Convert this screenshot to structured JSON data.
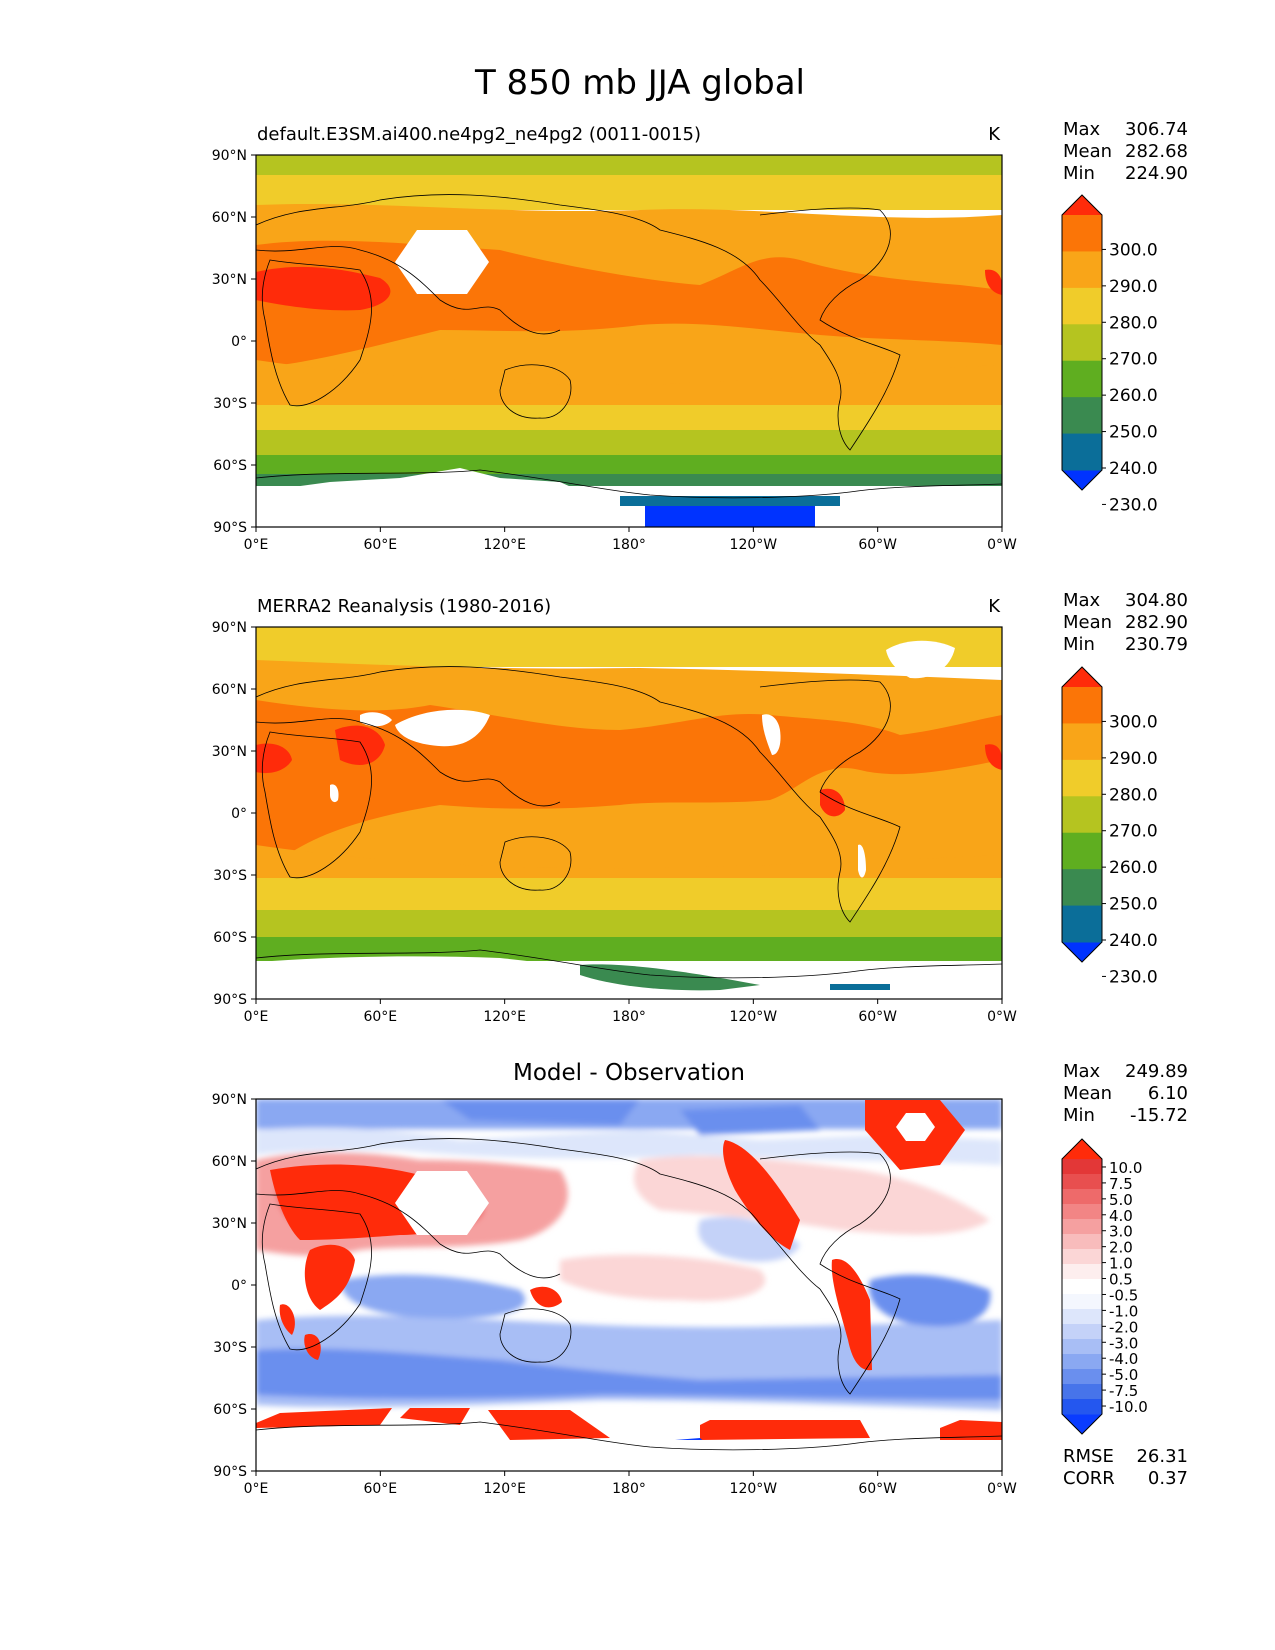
{
  "figure_title": "T 850 mb JJA global",
  "colors": {
    "levels_abs": [
      "#0033ff",
      "#0b6e99",
      "#3a8a50",
      "#5fae20",
      "#b5c420",
      "#f0cc2a",
      "#f9a518",
      "#fb7507",
      "#ff2b0a"
    ],
    "levels_diff": [
      "#0a3cff",
      "#2457ef",
      "#4774ea",
      "#6a8fee",
      "#8aa8f2",
      "#a8bef5",
      "#c4d2f8",
      "#dde6fb",
      "#f4f7fe",
      "#ffffff",
      "#fdeeee",
      "#fbd6d6",
      "#f8bcbc",
      "#f5a0a0",
      "#f28585",
      "#ee6a6a",
      "#e84f4f",
      "#e33737",
      "#ff2b0a"
    ],
    "missing": "#ffffff",
    "coast": "#000000"
  },
  "chart_data": [
    {
      "type": "heatmap",
      "panel": "model",
      "title_left": "default.E3SM.ai400.ne4pg2_ne4pg2 (0011-0015)",
      "title_right": "K",
      "stats": {
        "max_label": "Max",
        "max": "306.74",
        "mean_label": "Mean",
        "mean": "282.68",
        "min_label": "Min",
        "min": "224.90"
      },
      "x_ticks": [
        "0°E",
        "60°E",
        "120°E",
        "180°",
        "120°W",
        "60°W",
        "0°W"
      ],
      "y_ticks": [
        "90°N",
        "60°N",
        "30°N",
        "0°",
        "30°S",
        "60°S",
        "90°S"
      ],
      "xlim": [
        0,
        360
      ],
      "ylim": [
        -90,
        90
      ],
      "colorbar": {
        "labels": [
          "300.0",
          "290.0",
          "280.0",
          "270.0",
          "260.0",
          "250.0",
          "240.0",
          "230.0"
        ],
        "levels": [
          230,
          240,
          250,
          260,
          270,
          280,
          290,
          300
        ]
      },
      "features": [
        {
          "region": "Sahara/Arabia hot core",
          "lon": [
            0,
            55
          ],
          "lat": [
            15,
            40
          ],
          "value": 302
        },
        {
          "region": "Tibetan plateau (missing)",
          "lon": [
            68,
            112
          ],
          "lat": [
            25,
            50
          ],
          "value": null
        },
        {
          "region": "Antarctica (missing)",
          "lon": [
            0,
            360
          ],
          "lat": [
            -90,
            -72
          ],
          "value": null
        },
        {
          "region": "Ross sea cold sector",
          "lon": [
            187,
            270
          ],
          "lat": [
            -90,
            -82
          ],
          "value": 228
        }
      ]
    },
    {
      "type": "heatmap",
      "panel": "observation",
      "title_left": "MERRA2 Reanalysis (1980-2016)",
      "title_right": "K",
      "stats": {
        "max_label": "Max",
        "max": "304.80",
        "mean_label": "Mean",
        "mean": "282.90",
        "min_label": "Min",
        "min": "230.79"
      },
      "x_ticks": [
        "0°E",
        "60°E",
        "120°E",
        "180°",
        "120°W",
        "60°W",
        "0°W"
      ],
      "y_ticks": [
        "90°N",
        "60°N",
        "30°N",
        "0°",
        "30°S",
        "60°S",
        "90°S"
      ],
      "xlim": [
        0,
        360
      ],
      "ylim": [
        -90,
        90
      ],
      "colorbar": {
        "labels": [
          "300.0",
          "290.0",
          "280.0",
          "270.0",
          "260.0",
          "250.0",
          "240.0",
          "230.0"
        ],
        "levels": [
          230,
          240,
          250,
          260,
          270,
          280,
          290,
          300
        ]
      },
      "features": [
        {
          "region": "Greenland (missing)",
          "lon": [
            305,
            330
          ],
          "lat": [
            62,
            82
          ],
          "value": null
        },
        {
          "region": "Tibetan plateau (missing)",
          "lon": [
            70,
            105
          ],
          "lat": [
            28,
            40
          ],
          "value": null
        },
        {
          "region": "Rockies (missing)",
          "lon": [
            242,
            250
          ],
          "lat": [
            28,
            52
          ],
          "value": null
        },
        {
          "region": "Andes (missing)",
          "lon": [
            290,
            296
          ],
          "lat": [
            -35,
            -5
          ],
          "value": null
        },
        {
          "region": "Antarctica (missing)",
          "lon": [
            0,
            360
          ],
          "lat": [
            -90,
            -73
          ],
          "value": null
        }
      ]
    },
    {
      "type": "heatmap",
      "panel": "difference",
      "title_center": "Model - Observation",
      "stats": {
        "max_label": "Max",
        "max": "249.89",
        "mean_label": "Mean",
        "mean": "6.10",
        "min_label": "Min",
        "min": "-15.72",
        "rmse_label": "RMSE",
        "rmse": "26.31",
        "corr_label": "CORR",
        "corr": "0.37"
      },
      "x_ticks": [
        "0°E",
        "60°E",
        "120°E",
        "180°",
        "120°W",
        "60°W",
        "0°W"
      ],
      "y_ticks": [
        "90°N",
        "60°N",
        "30°N",
        "0°",
        "30°S",
        "60°S",
        "90°S"
      ],
      "xlim": [
        0,
        360
      ],
      "ylim": [
        -90,
        90
      ],
      "colorbar": {
        "labels": [
          "10.0",
          "7.5",
          "5.0",
          "4.0",
          "3.0",
          "2.0",
          "1.0",
          "0.5",
          "-0.5",
          "-1.0",
          "-2.0",
          "-3.0",
          "-4.0",
          "-5.0",
          "-7.5",
          "-10.0"
        ],
        "levels": [
          -10,
          -7.5,
          -5,
          -4,
          -3,
          -2,
          -1,
          -0.5,
          0.5,
          1,
          2,
          3,
          4,
          5,
          7.5,
          10
        ]
      },
      "features": [
        {
          "region": "Eurasia warm bias",
          "lon": [
            0,
            120
          ],
          "lat": [
            20,
            60
          ],
          "value": 6
        },
        {
          "region": "N. America west coast warm bias",
          "lon": [
            220,
            260
          ],
          "lat": [
            20,
            60
          ],
          "value": 10
        },
        {
          "region": "Greenland warm bias",
          "lon": [
            300,
            340
          ],
          "lat": [
            63,
            90
          ],
          "value": 10
        },
        {
          "region": "Andes warm bias",
          "lon": [
            285,
            300
          ],
          "lat": [
            -45,
            5
          ],
          "value": 10
        },
        {
          "region": "S. Ocean cold bias",
          "lon": [
            0,
            360
          ],
          "lat": [
            -70,
            -30
          ],
          "value": -4
        },
        {
          "region": "Arctic cold bias",
          "lon": [
            0,
            360
          ],
          "lat": [
            75,
            90
          ],
          "value": -4
        }
      ]
    }
  ]
}
